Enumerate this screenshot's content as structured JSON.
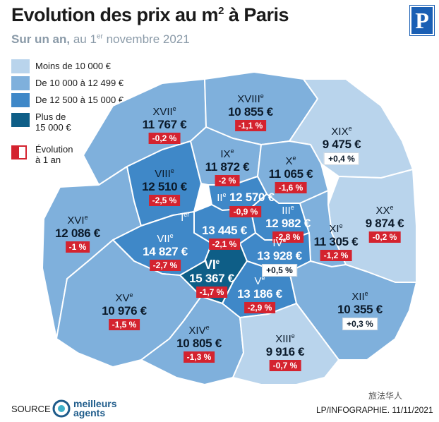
{
  "header": {
    "title": "Evolution des prix au m² à Paris",
    "subtitle_bold": "Sur un an,",
    "subtitle_pre": " au 1",
    "subtitle_sup": "er",
    "subtitle_post": " novembre 2021"
  },
  "logo": {
    "letter": "P",
    "color": "#1a5fb4"
  },
  "legend": [
    {
      "label": "Moins de 10 000 €",
      "color": "#b9d4ec"
    },
    {
      "label": "De 10 000 à 12 499 €",
      "color": "#7fb0dc"
    },
    {
      "label": "De 12 500 à 15 000 €",
      "color": "#3f88c8"
    },
    {
      "label": "Plus de\n15 000 €",
      "color": "#0e5e87"
    },
    {
      "label": "Évolution\nà 1 an",
      "color": "#d4232f"
    }
  ],
  "arrondissements": [
    {
      "num": "I",
      "sup": "er",
      "price": "13 445 €",
      "change": "-2,1 %"
    },
    {
      "num": "II",
      "sup": "e",
      "price": "12 570 €",
      "change": "-0,9 %"
    },
    {
      "num": "III",
      "sup": "e",
      "price": "12 982 €",
      "change": "-2,8 %"
    },
    {
      "num": "IV",
      "sup": "e",
      "price": "13 928 €",
      "change": "+0,5 %"
    },
    {
      "num": "V",
      "sup": "e",
      "price": "13 186 €",
      "change": "-2,9 %"
    },
    {
      "num": "VI",
      "sup": "e",
      "price": "15 367 €",
      "change": "-1,7 %"
    },
    {
      "num": "VII",
      "sup": "e",
      "price": "14 827 €",
      "change": "-2,7 %"
    },
    {
      "num": "VIII",
      "sup": "e",
      "price": "12 510 €",
      "change": "-2,5 %"
    },
    {
      "num": "IX",
      "sup": "e",
      "price": "11 872 €",
      "change": "-2 %"
    },
    {
      "num": "X",
      "sup": "e",
      "price": "11 065 €",
      "change": "-1,6 %"
    },
    {
      "num": "XI",
      "sup": "e",
      "price": "11 305 €",
      "change": "-1,2 %"
    },
    {
      "num": "XII",
      "sup": "e",
      "price": "10 355 €",
      "change": "+0,3 %"
    },
    {
      "num": "XIII",
      "sup": "e",
      "price": "9 916 €",
      "change": "-0,7 %"
    },
    {
      "num": "XIV",
      "sup": "e",
      "price": "10 805 €",
      "change": "-1,3 %"
    },
    {
      "num": "XV",
      "sup": "e",
      "price": "10 976 €",
      "change": "-1,5 %"
    },
    {
      "num": "XVI",
      "sup": "e",
      "price": "12 086 €",
      "change": "-1 %"
    },
    {
      "num": "XVII",
      "sup": "e",
      "price": "11 767 €",
      "change": "-0,2 %"
    },
    {
      "num": "XVIII",
      "sup": "e",
      "price": "10 855 €",
      "change": "-1,1 %"
    },
    {
      "num": "XIX",
      "sup": "e",
      "price": "9 475 €",
      "change": "+0,4 %"
    },
    {
      "num": "XX",
      "sup": "e",
      "price": "9 874 €",
      "change": "-0,2 %"
    }
  ],
  "footer": {
    "source": "SOURCE :",
    "brand_line1": "meilleurs",
    "brand_line2": "agents",
    "credit": "LP/INFOGRAPHIE. 11/11/2021",
    "watermark": "旅法华人"
  }
}
